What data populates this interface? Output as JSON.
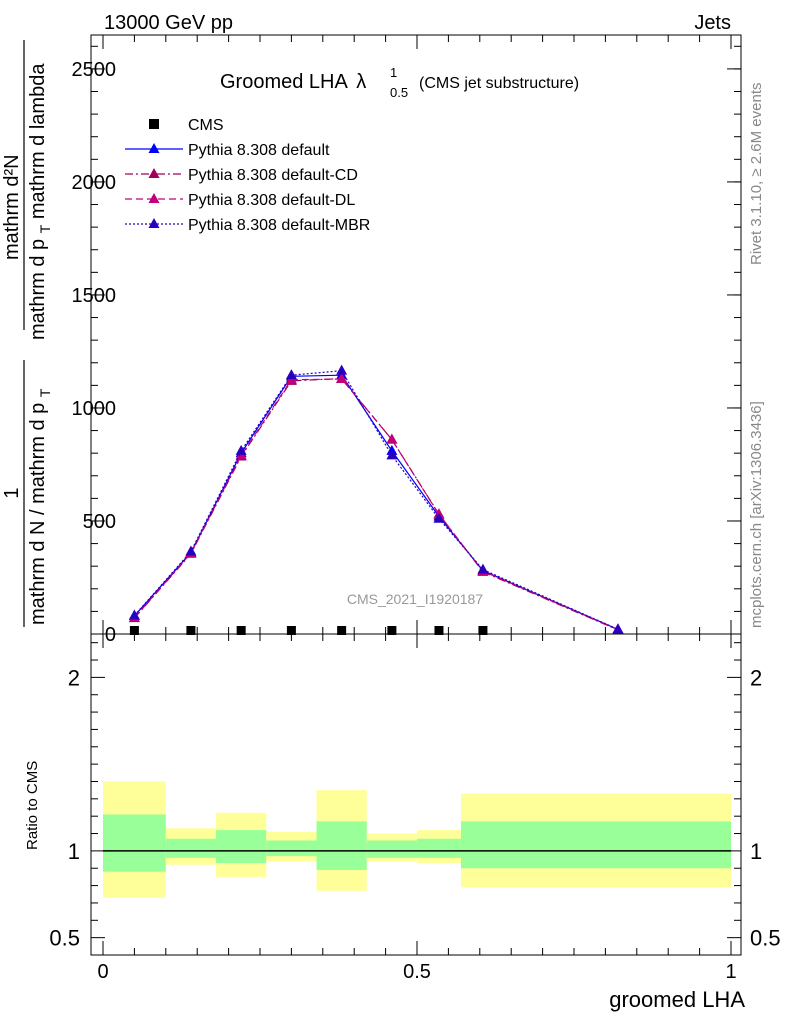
{
  "header": {
    "left": "13000 GeV pp",
    "right": "Jets"
  },
  "plot_title": {
    "main": "Groomed LHA",
    "lambda": "λ",
    "sup": "1",
    "sub": "0.5",
    "suffix": "(CMS jet substructure)"
  },
  "side_text": {
    "rivet": "Rivet 3.1.10, ≥ 2.6M events",
    "mcplots": "mcplots.cern.ch [arXiv:1306.3436]"
  },
  "watermark": "CMS_2021_I1920187",
  "y_label_main": {
    "numerator_1": "1",
    "numerator_2": "mathrm d²N",
    "denominator": "mathrm d N / mathrm d p",
    "denominator_sub": "T",
    "big": "mathrm d p",
    "big_sub": "T",
    "big_rest": "mathrm d lambda"
  },
  "ratio_label": "Ratio to CMS",
  "x_label": "groomed LHA",
  "colors": {
    "cms": "#000000",
    "default": "#0000ff",
    "cd": "#a0005a",
    "dl": "#c0007a",
    "mbr": "#2a00c0",
    "band_inner": "#99ff99",
    "band_outer": "#ffff99"
  },
  "chart_data": {
    "type": "line",
    "title": "Groomed LHA λ^1_0.5 (CMS jet substructure)",
    "xlabel": "groomed LHA",
    "xlim": [
      0,
      1
    ],
    "main_ylim": [
      0,
      2650
    ],
    "main_yticks": [
      0,
      500,
      1000,
      1500,
      2000,
      2500
    ],
    "main_ytick_labels": [
      "0",
      "500",
      "1000",
      "1500",
      "2000",
      "2500"
    ],
    "ratio_ylim": [
      0.4,
      2.25
    ],
    "ratio_yticks": [
      0.5,
      1,
      2
    ],
    "ratio_ytick_labels": [
      "0.5",
      "1",
      "2"
    ],
    "xticks": [
      0,
      0.5,
      1
    ],
    "xtick_labels": [
      "0",
      "0.5",
      "1"
    ],
    "legend": [
      "CMS",
      "Pythia 8.308 default",
      "Pythia 8.308 default-CD",
      "Pythia 8.308 default-DL",
      "Pythia 8.308 default-MBR"
    ],
    "cms": {
      "x": [
        0.05,
        0.14,
        0.22,
        0.3,
        0.38,
        0.46,
        0.535,
        0.605
      ],
      "y": [
        0,
        0,
        0,
        0,
        0,
        0,
        0,
        0
      ]
    },
    "series": [
      {
        "name": "Pythia 8.308 default",
        "x": [
          0.05,
          0.14,
          0.22,
          0.3,
          0.38,
          0.46,
          0.535,
          0.605,
          0.82
        ],
        "y": [
          80,
          360,
          800,
          1140,
          1145,
          810,
          520,
          280,
          20
        ]
      },
      {
        "name": "Pythia 8.308 default-CD",
        "x": [
          0.05,
          0.14,
          0.22,
          0.3,
          0.38,
          0.46,
          0.535,
          0.605,
          0.82
        ],
        "y": [
          70,
          355,
          785,
          1120,
          1130,
          860,
          530,
          275,
          18
        ]
      },
      {
        "name": "Pythia 8.308 default-DL",
        "x": [
          0.05,
          0.14,
          0.22,
          0.3,
          0.38,
          0.46,
          0.535,
          0.605,
          0.82
        ],
        "y": [
          72,
          358,
          790,
          1125,
          1128,
          860,
          528,
          278,
          19
        ]
      },
      {
        "name": "Pythia 8.308 default-MBR",
        "x": [
          0.05,
          0.14,
          0.22,
          0.3,
          0.38,
          0.46,
          0.535,
          0.605,
          0.82
        ],
        "y": [
          82,
          365,
          810,
          1145,
          1165,
          790,
          510,
          285,
          21
        ]
      }
    ],
    "ratio_band": [
      {
        "x0": 0.0,
        "x1": 0.1,
        "in_lo": 0.88,
        "in_hi": 1.21,
        "out_lo": 0.73,
        "out_hi": 1.4
      },
      {
        "x0": 0.1,
        "x1": 0.18,
        "in_lo": 0.96,
        "in_hi": 1.07,
        "out_lo": 0.92,
        "out_hi": 1.13
      },
      {
        "x0": 0.18,
        "x1": 0.26,
        "in_lo": 0.93,
        "in_hi": 1.12,
        "out_lo": 0.85,
        "out_hi": 1.22
      },
      {
        "x0": 0.26,
        "x1": 0.34,
        "in_lo": 0.97,
        "in_hi": 1.06,
        "out_lo": 0.94,
        "out_hi": 1.11
      },
      {
        "x0": 0.34,
        "x1": 0.42,
        "in_lo": 0.89,
        "in_hi": 1.17,
        "out_lo": 0.77,
        "out_hi": 1.35
      },
      {
        "x0": 0.42,
        "x1": 0.5,
        "in_lo": 0.96,
        "in_hi": 1.06,
        "out_lo": 0.94,
        "out_hi": 1.1
      },
      {
        "x0": 0.5,
        "x1": 0.57,
        "in_lo": 0.96,
        "in_hi": 1.07,
        "out_lo": 0.93,
        "out_hi": 1.12
      },
      {
        "x0": 0.57,
        "x1": 1.0,
        "in_lo": 0.9,
        "in_hi": 1.17,
        "out_lo": 0.79,
        "out_hi": 1.33
      }
    ]
  }
}
